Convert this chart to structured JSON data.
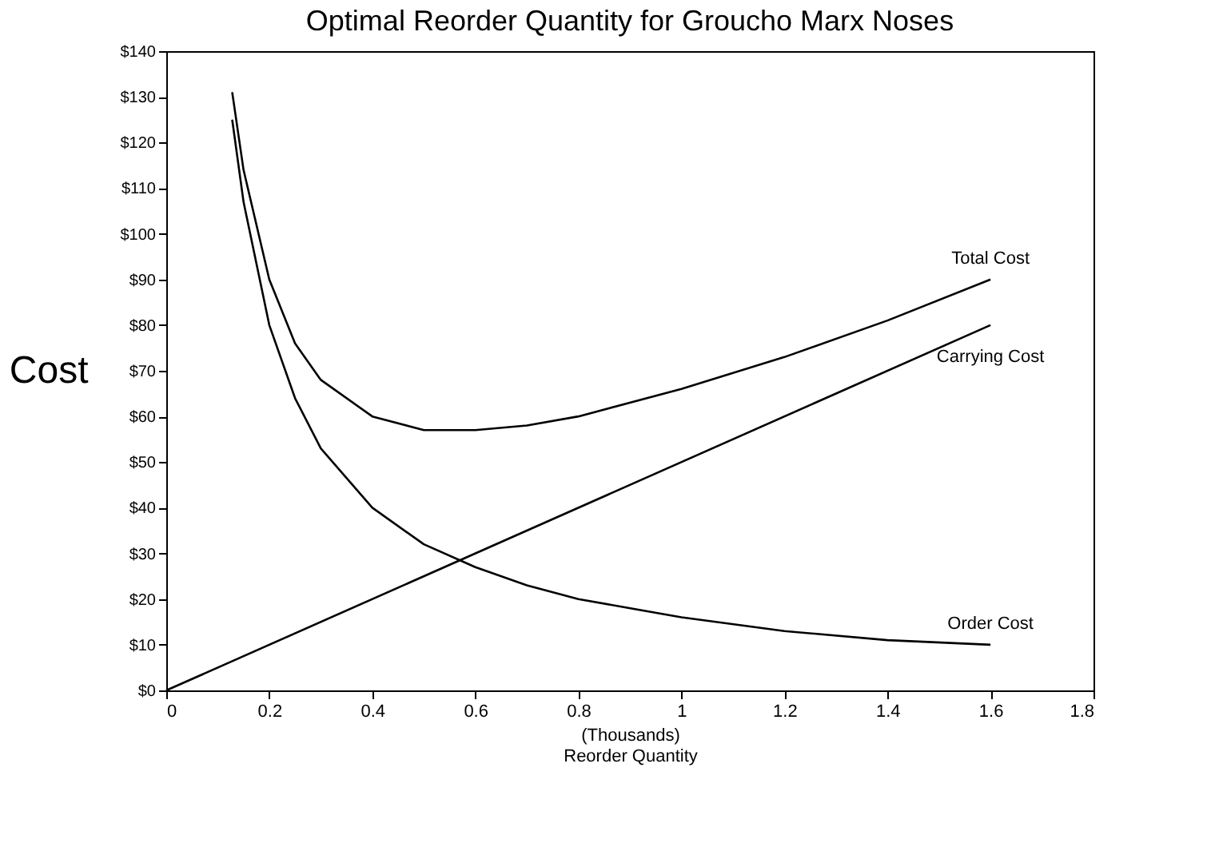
{
  "chart_data": {
    "type": "line",
    "title": "Optimal Reorder Quantity for Groucho Marx Noses",
    "xlabel": "Reorder Quantity",
    "ylabel": "Cost",
    "series": [
      {
        "name": "Total Cost",
        "color": "#000000",
        "x": [
          0.128,
          0.15,
          0.2,
          0.25,
          0.3,
          0.4,
          0.5,
          0.6,
          0.7,
          0.8,
          1.0,
          1.2,
          1.4,
          1.6
        ],
        "values": [
          131,
          114,
          90,
          76,
          68,
          60,
          57,
          57,
          58,
          60,
          66,
          73,
          81,
          90
        ]
      },
      {
        "name": "Carrying Cost",
        "color": "#000000",
        "x": [
          0,
          1.6
        ],
        "values": [
          0,
          80
        ]
      },
      {
        "name": "Order Cost",
        "color": "#000000",
        "x": [
          0.128,
          0.15,
          0.2,
          0.25,
          0.3,
          0.4,
          0.5,
          0.6,
          0.7,
          0.8,
          1.0,
          1.2,
          1.4,
          1.6
        ],
        "values": [
          125,
          107,
          80,
          64,
          53,
          40,
          32,
          27,
          23,
          20,
          16,
          13,
          11,
          10
        ]
      }
    ],
    "annotations": [
      "(Thousands)"
    ],
    "xlim": [
      0,
      1.8
    ],
    "xticks": [
      0,
      0.2,
      0.4,
      0.6,
      0.8,
      1,
      1.2,
      1.4,
      1.6,
      1.8
    ],
    "ylim": [
      0,
      140
    ],
    "yticks": [
      {
        "value": 0,
        "label": "$0"
      },
      {
        "value": 10,
        "label": "$10"
      },
      {
        "value": 20,
        "label": "$20"
      },
      {
        "value": 30,
        "label": "$30"
      },
      {
        "value": 40,
        "label": "$40"
      },
      {
        "value": 50,
        "label": "$50"
      },
      {
        "value": 60,
        "label": "$60"
      },
      {
        "value": 70,
        "label": "$70"
      },
      {
        "value": 80,
        "label": "$80"
      },
      {
        "value": 90,
        "label": "$90"
      },
      {
        "value": 100,
        "label": "$100"
      },
      {
        "value": 110,
        "label": "$110"
      },
      {
        "value": 120,
        "label": "$120"
      },
      {
        "value": 130,
        "label": "$130"
      },
      {
        "value": 140,
        "label": "$140"
      }
    ],
    "grid": false,
    "legend": false
  }
}
